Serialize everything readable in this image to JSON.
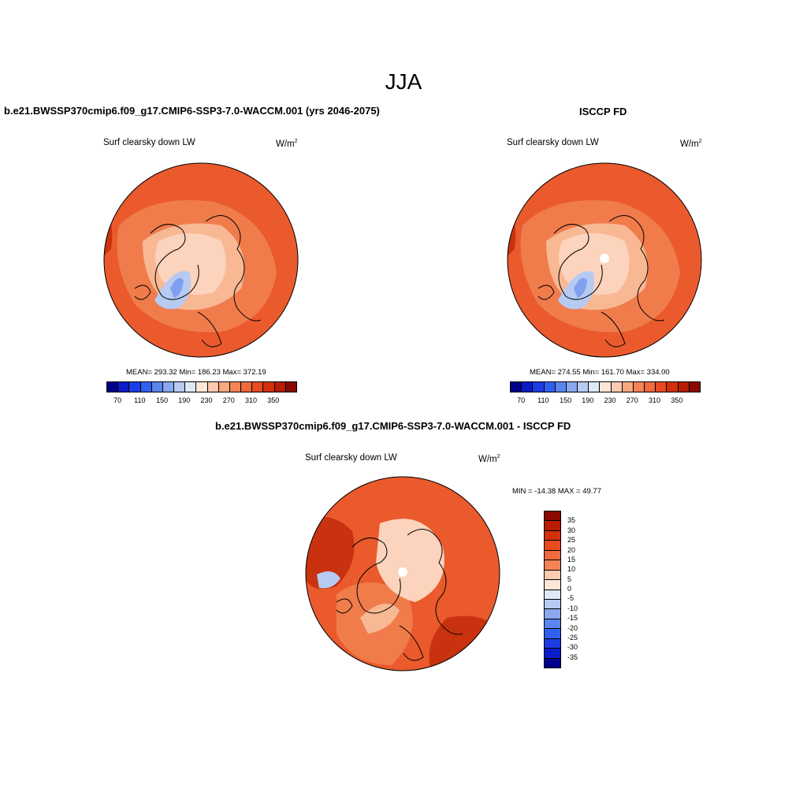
{
  "season": "JJA",
  "panels": {
    "model": {
      "title": "b.e21.BWSSP370cmip6.f09_g17.CMIP6-SSP3-7.0-WACCM.001 (yrs 2046-2075)",
      "variable": "Surf clearsky down LW",
      "units": "W/m",
      "units_exp": "2",
      "stats": "MEAN= 293.32  Min= 186.23  Max= 372.19"
    },
    "obs": {
      "title": "ISCCP FD",
      "variable": "Surf clearsky down LW",
      "units": "W/m",
      "units_exp": "2",
      "stats": "MEAN= 274.55  Min= 161.70  Max= 334.00"
    },
    "diff": {
      "title": "b.e21.BWSSP370cmip6.f09_g17.CMIP6-SSP3-7.0-WACCM.001 - ISCCP FD",
      "variable": "Surf clearsky down LW",
      "units": "W/m",
      "units_exp": "2",
      "stats": "MIN = -14.38 MAX =  49.77"
    }
  },
  "abs_colorbar": {
    "colors": [
      "#00008b",
      "#0a1cc8",
      "#1c3ce6",
      "#3060f0",
      "#5a86f0",
      "#8aa8f0",
      "#b6caf2",
      "#dde8f8",
      "#fde6d6",
      "#fccab0",
      "#f8a880",
      "#f48458",
      "#ef6a3c",
      "#e64c20",
      "#d4300c",
      "#b81c04",
      "#8a0a00"
    ],
    "tick_labels": [
      "70",
      "110",
      "150",
      "190",
      "230",
      "270",
      "310",
      "350"
    ]
  },
  "diff_colorbar": {
    "colors": [
      "#8a0a00",
      "#b81c04",
      "#d4300c",
      "#e64c20",
      "#ef6a3c",
      "#f48458",
      "#fccab0",
      "#fde6d6",
      "#dde8f8",
      "#b6caf2",
      "#8aa8f0",
      "#5a86f0",
      "#3060f0",
      "#1c3ce6",
      "#0a1cc8",
      "#00008b"
    ],
    "tick_labels": [
      "35",
      "30",
      "25",
      "20",
      "15",
      "10",
      "5",
      "0",
      "-5",
      "-10",
      "-15",
      "-20",
      "-25",
      "-30",
      "-35"
    ]
  },
  "map_fill_colors": {
    "outer": "#ea5a2c",
    "dark": "#c8320e",
    "mid": "#f07c4c",
    "light": "#f9b894",
    "pale": "#fcd3bc",
    "lightblue": "#b6caf2",
    "blue": "#7fa0ee",
    "pole_hole": "#ffffff"
  }
}
